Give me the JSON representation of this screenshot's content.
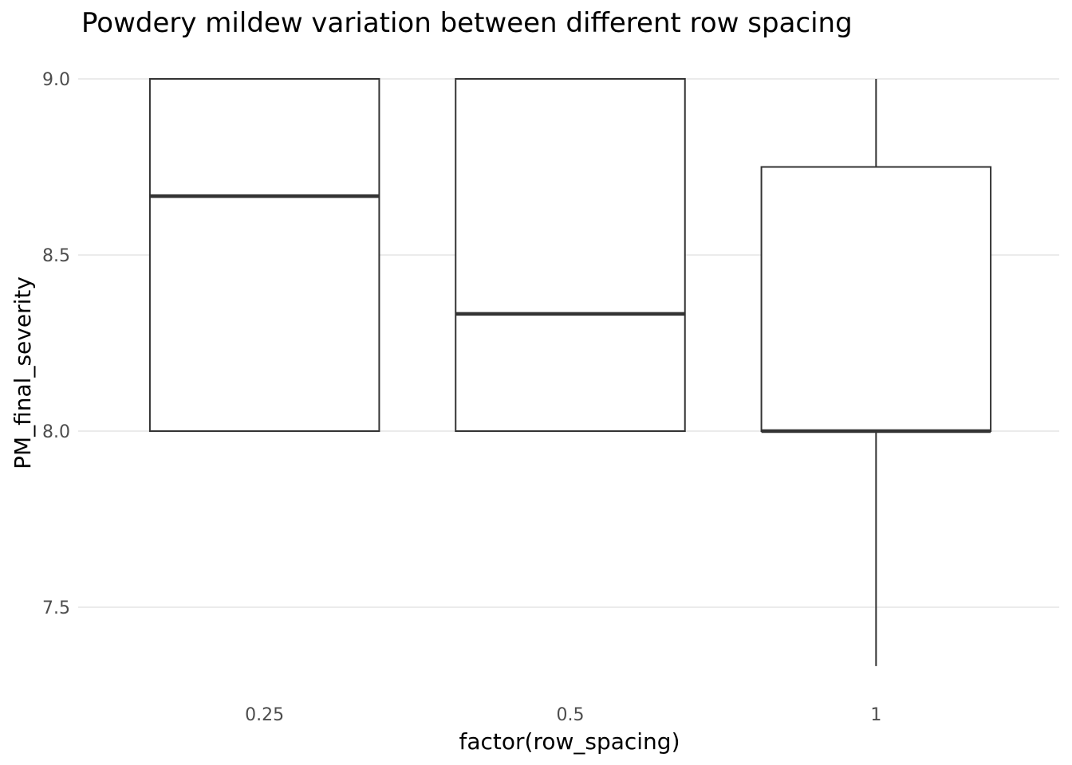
{
  "chart_data": {
    "type": "boxplot",
    "title": "Powdery mildew variation between different row spacing",
    "xlabel": "factor(row_spacing)",
    "ylabel": "PM_final_severity",
    "categories": [
      "0.25",
      "0.5",
      "1"
    ],
    "boxes": [
      {
        "category": "0.25",
        "whisker_low": 8.0,
        "q1": 8.0,
        "median": 8.667,
        "q3": 9.0,
        "whisker_high": 9.0
      },
      {
        "category": "0.5",
        "whisker_low": 8.0,
        "q1": 8.0,
        "median": 8.333,
        "q3": 9.0,
        "whisker_high": 9.0
      },
      {
        "category": "1",
        "whisker_low": 7.333,
        "q1": 8.0,
        "median": 8.0,
        "q3": 8.75,
        "whisker_high": 9.0
      }
    ],
    "ylim": [
      7.3,
      9.03
    ],
    "yticks": [
      7.5,
      8.0,
      8.5,
      9.0
    ],
    "ytick_labels": [
      "7.5",
      "8.0",
      "8.5",
      "9.0"
    ],
    "grid": true
  }
}
